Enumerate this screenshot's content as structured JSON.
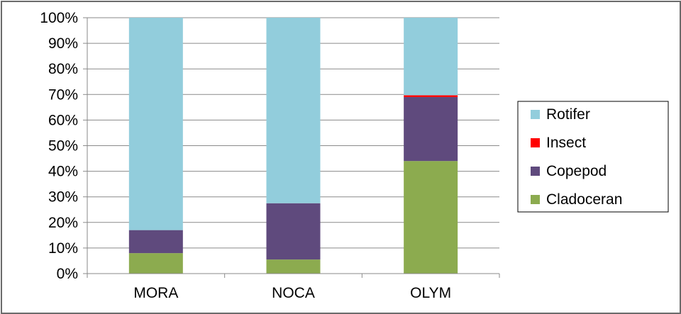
{
  "chart_data": {
    "type": "bar",
    "stacked": true,
    "normalized": true,
    "categories": [
      "MORA",
      "NOCA",
      "OLYM"
    ],
    "series": [
      {
        "name": "Cladoceran",
        "values": [
          8,
          5.5,
          44
        ],
        "color": "#8cab4f"
      },
      {
        "name": "Copepod",
        "values": [
          9,
          22,
          25
        ],
        "color": "#5f4a7d"
      },
      {
        "name": "Insect",
        "values": [
          0,
          0,
          0.7
        ],
        "color": "#ff0000"
      },
      {
        "name": "Rotifer",
        "values": [
          83,
          72.5,
          30.3
        ],
        "color": "#92cddc"
      }
    ],
    "ylim": [
      0,
      100
    ],
    "yticks": [
      "0%",
      "10%",
      "20%",
      "30%",
      "40%",
      "50%",
      "60%",
      "70%",
      "80%",
      "90%",
      "100%"
    ],
    "grid": true,
    "legend_position": "right",
    "legend_order": [
      "Rotifer",
      "Insect",
      "Copepod",
      "Cladoceran"
    ],
    "title": "",
    "xlabel": "",
    "ylabel": ""
  }
}
